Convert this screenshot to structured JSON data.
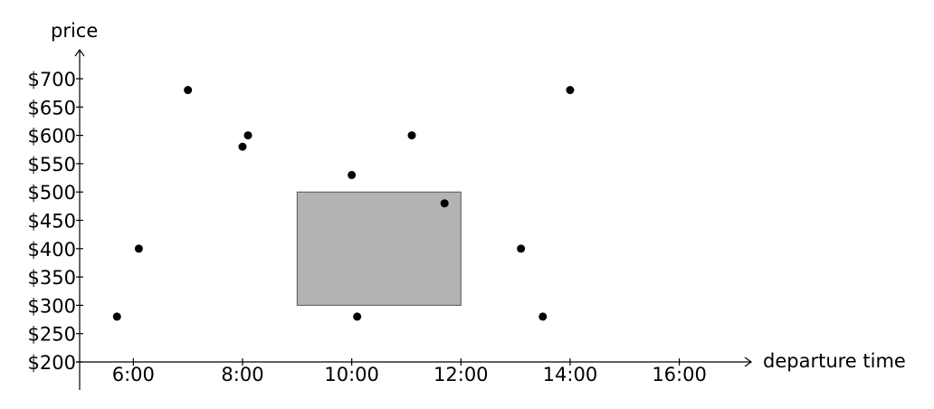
{
  "chart_data": {
    "type": "scatter",
    "xlabel": "departure time",
    "ylabel": "price",
    "x_ticks": [
      {
        "value": 6,
        "label": "6:00"
      },
      {
        "value": 8,
        "label": "8:00"
      },
      {
        "value": 10,
        "label": "10:00"
      },
      {
        "value": 12,
        "label": "12:00"
      },
      {
        "value": 14,
        "label": "14:00"
      },
      {
        "value": 16,
        "label": "16:00"
      }
    ],
    "y_ticks": [
      {
        "value": 200,
        "label": "$200"
      },
      {
        "value": 250,
        "label": "$250"
      },
      {
        "value": 300,
        "label": "$300"
      },
      {
        "value": 350,
        "label": "$350"
      },
      {
        "value": 400,
        "label": "$400"
      },
      {
        "value": 450,
        "label": "$450"
      },
      {
        "value": 500,
        "label": "$500"
      },
      {
        "value": 550,
        "label": "$550"
      },
      {
        "value": 600,
        "label": "$600"
      },
      {
        "value": 650,
        "label": "$650"
      },
      {
        "value": 700,
        "label": "$700"
      }
    ],
    "xlim": [
      4.95,
      17.3
    ],
    "ylim": [
      200,
      700
    ],
    "grid": false,
    "points": [
      {
        "x": 5.7,
        "y": 280
      },
      {
        "x": 6.1,
        "y": 400
      },
      {
        "x": 7.0,
        "y": 680
      },
      {
        "x": 8.0,
        "y": 580
      },
      {
        "x": 8.1,
        "y": 600
      },
      {
        "x": 10.0,
        "y": 530
      },
      {
        "x": 10.1,
        "y": 280
      },
      {
        "x": 11.1,
        "y": 600
      },
      {
        "x": 11.7,
        "y": 480
      },
      {
        "x": 13.1,
        "y": 400
      },
      {
        "x": 13.5,
        "y": 280
      },
      {
        "x": 14.0,
        "y": 680
      }
    ],
    "region": {
      "x": [
        9,
        12
      ],
      "y": [
        300,
        500
      ],
      "color": "#b3b3b3"
    },
    "point_color": "#000000",
    "axis_color": "#000000"
  }
}
